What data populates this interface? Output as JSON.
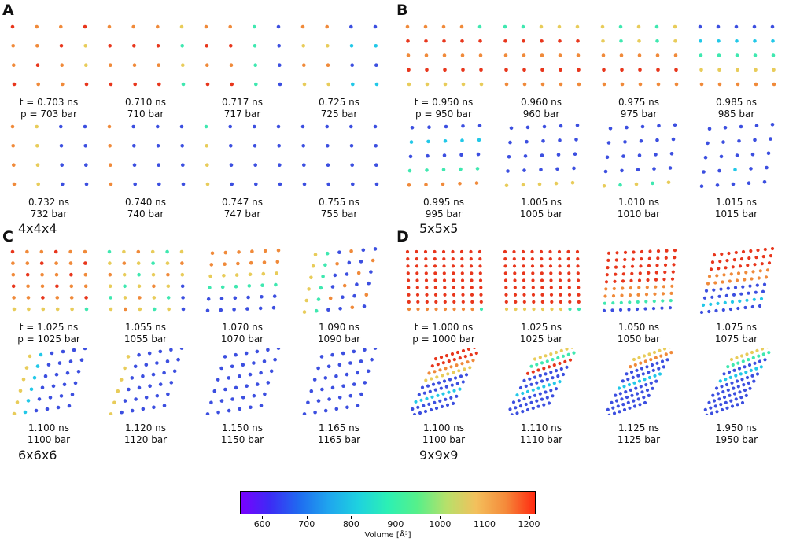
{
  "colors": {
    "violet": "#7a22f5",
    "blue": "#3c4fe0",
    "cyan": "#22c8e8",
    "green": "#3fe8b0",
    "yellow": "#e8cc5a",
    "orange": "#f08a3a",
    "red": "#e8361c"
  },
  "panels": {
    "A": {
      "label": "A",
      "size": "4x4x4",
      "snapshots": [
        {
          "line1": "t = 0.703 ns",
          "line2": "p = 703 bar",
          "n": 4,
          "pattern": "A0"
        },
        {
          "line1": "0.710 ns",
          "line2": "710 bar",
          "n": 4,
          "pattern": "A1"
        },
        {
          "line1": "0.717 ns",
          "line2": "717 bar",
          "n": 4,
          "pattern": "A2"
        },
        {
          "line1": "0.725 ns",
          "line2": "725 bar",
          "n": 4,
          "pattern": "A3"
        },
        {
          "line1": "0.732 ns",
          "line2": "732 bar",
          "n": 4,
          "pattern": "A4"
        },
        {
          "line1": "0.740 ns",
          "line2": "740 bar",
          "n": 4,
          "pattern": "A5"
        },
        {
          "line1": "0.747 ns",
          "line2": "747 bar",
          "n": 4,
          "pattern": "A6"
        },
        {
          "line1": "0.755 ns",
          "line2": "755 bar",
          "n": 4,
          "pattern": "A7"
        }
      ]
    },
    "B": {
      "label": "B",
      "size": "5x5x5",
      "snapshots": [
        {
          "line1": "t = 0.950 ns",
          "line2": "p = 950 bar",
          "n": 5,
          "pattern": "B0"
        },
        {
          "line1": "0.960 ns",
          "line2": "960 bar",
          "n": 5,
          "pattern": "B1"
        },
        {
          "line1": "0.975 ns",
          "line2": "975 bar",
          "n": 5,
          "pattern": "B2"
        },
        {
          "line1": "0.985 ns",
          "line2": "985 bar",
          "n": 5,
          "pattern": "B3"
        },
        {
          "line1": "0.995 ns",
          "line2": "995 bar",
          "n": 5,
          "pattern": "B4"
        },
        {
          "line1": "1.005 ns",
          "line2": "1005 bar",
          "n": 5,
          "pattern": "B5"
        },
        {
          "line1": "1.010 ns",
          "line2": "1010 bar",
          "n": 5,
          "pattern": "B6"
        },
        {
          "line1": "1.015 ns",
          "line2": "1015 bar",
          "n": 5,
          "pattern": "B7"
        }
      ]
    },
    "C": {
      "label": "C",
      "size": "6x6x6",
      "snapshots": [
        {
          "line1": "t = 1.025 ns",
          "line2": "p = 1025 bar",
          "n": 6,
          "pattern": "C0"
        },
        {
          "line1": "1.055 ns",
          "line2": "1055 bar",
          "n": 6,
          "pattern": "C1"
        },
        {
          "line1": "1.070 ns",
          "line2": "1070 bar",
          "n": 6,
          "pattern": "C2"
        },
        {
          "line1": "1.090 ns",
          "line2": "1090 bar",
          "n": 6,
          "pattern": "C3"
        },
        {
          "line1": "1.100 ns",
          "line2": "1100 bar",
          "n": 6,
          "pattern": "C4"
        },
        {
          "line1": "1.120 ns",
          "line2": "1120 bar",
          "n": 6,
          "pattern": "C5"
        },
        {
          "line1": "1.150 ns",
          "line2": "1150 bar",
          "n": 6,
          "pattern": "C6"
        },
        {
          "line1": "1.165 ns",
          "line2": "1165 bar",
          "n": 6,
          "pattern": "C7"
        }
      ]
    },
    "D": {
      "label": "D",
      "size": "9x9x9",
      "snapshots": [
        {
          "line1": "t = 1.000 ns",
          "line2": "p = 1000 bar",
          "n": 9,
          "pattern": "D0"
        },
        {
          "line1": "1.025 ns",
          "line2": "1025 bar",
          "n": 9,
          "pattern": "D1"
        },
        {
          "line1": "1.050 ns",
          "line2": "1050 bar",
          "n": 9,
          "pattern": "D2"
        },
        {
          "line1": "1.075 ns",
          "line2": "1075 bar",
          "n": 9,
          "pattern": "D3"
        },
        {
          "line1": "1.100 ns",
          "line2": "1100 bar",
          "n": 9,
          "pattern": "D4"
        },
        {
          "line1": "1.110 ns",
          "line2": "1110 bar",
          "n": 9,
          "pattern": "D5"
        },
        {
          "line1": "1.125 ns",
          "line2": "1125 bar",
          "n": 9,
          "pattern": "D6"
        },
        {
          "line1": "1.950 ns",
          "line2": "1950 bar",
          "n": 9,
          "pattern": "D7"
        }
      ]
    }
  },
  "colorbar": {
    "label": "Volume [Å³]",
    "min": 550,
    "max": 1215,
    "ticks": [
      600,
      700,
      800,
      900,
      1000,
      1100,
      1200
    ],
    "tick_labels": [
      "600",
      "700",
      "800",
      "900",
      "1000",
      "1100",
      "1200"
    ],
    "stops": [
      "#7a00ff",
      "#3c2cf5",
      "#1f6cf0",
      "#1fa6ee",
      "#1ed2df",
      "#2cf0b4",
      "#56f08a",
      "#b7e06a",
      "#f3c05c",
      "#f58a3a",
      "#ff2a10"
    ]
  }
}
